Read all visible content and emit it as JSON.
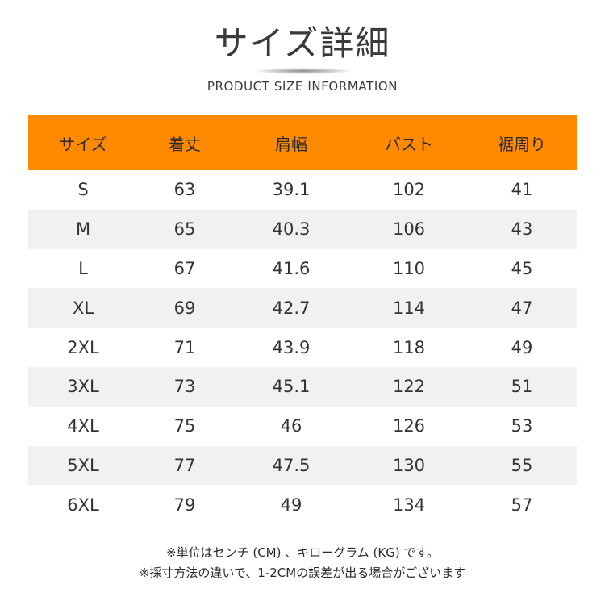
{
  "header": {
    "title": "サイズ詳細",
    "subtitle": "PRODUCT SIZE INFORMATION"
  },
  "table": {
    "header_color": "#ff8a00",
    "stripe_color": "#f1f1f1",
    "columns": [
      "サイズ",
      "着丈",
      "肩幅",
      "バスト",
      "裾周り"
    ],
    "rows": [
      [
        "S",
        "63",
        "39.1",
        "102",
        "41"
      ],
      [
        "M",
        "65",
        "40.3",
        "106",
        "43"
      ],
      [
        "L",
        "67",
        "41.6",
        "110",
        "45"
      ],
      [
        "XL",
        "69",
        "42.7",
        "114",
        "47"
      ],
      [
        "2XL",
        "71",
        "43.9",
        "118",
        "49"
      ],
      [
        "3XL",
        "73",
        "45.1",
        "122",
        "51"
      ],
      [
        "4XL",
        "75",
        "46",
        "126",
        "53"
      ],
      [
        "5XL",
        "77",
        "47.5",
        "130",
        "55"
      ],
      [
        "6XL",
        "79",
        "49",
        "134",
        "57"
      ]
    ]
  },
  "notes": [
    "※単位はセンチ (CM) 、キローグラム (KG) です。",
    "※採寸方法の違いで、1-2CMの誤差が出る場合がございます"
  ]
}
